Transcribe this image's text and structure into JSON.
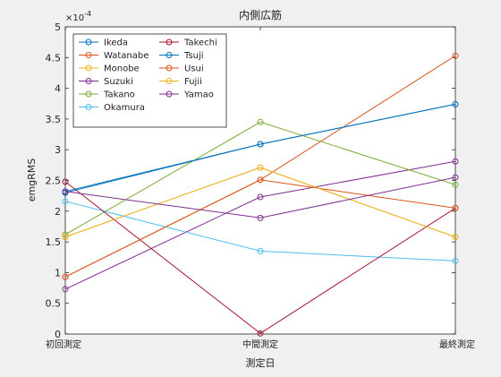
{
  "chart_data": {
    "type": "line",
    "title": "内側広筋",
    "xlabel": "測定日",
    "ylabel": "emgRMS",
    "y_exponent_label": "×10",
    "y_exponent_value": "-4",
    "categories": [
      "初回測定",
      "中間測定",
      "最終測定"
    ],
    "ylim": [
      0,
      5
    ],
    "yticks": [
      0,
      0.5,
      1,
      1.5,
      2,
      2.5,
      3,
      3.5,
      4,
      4.5,
      5
    ],
    "ytick_labels": [
      "0",
      "0.5",
      "1",
      "1.5",
      "2",
      "2.5",
      "3",
      "3.5",
      "4",
      "4.5",
      "5"
    ],
    "grid": false,
    "legend_position": "top-left",
    "legend_columns": 2,
    "series": [
      {
        "name": "Ikeda",
        "color": "#0072BD",
        "values": [
          2.32,
          3.09,
          3.74
        ]
      },
      {
        "name": "Watanabe",
        "color": "#D95319",
        "values": [
          0.93,
          2.51,
          4.53
        ]
      },
      {
        "name": "Monobe",
        "color": "#EDB120",
        "values": [
          1.58,
          2.71,
          1.58
        ]
      },
      {
        "name": "Suzuki",
        "color": "#7E2F8E",
        "values": [
          0.73,
          2.23,
          2.81
        ]
      },
      {
        "name": "Takano",
        "color": "#77AC30",
        "values": [
          1.62,
          3.45,
          2.43
        ]
      },
      {
        "name": "Okamura",
        "color": "#4DBEEE",
        "values": [
          2.16,
          1.35,
          1.19
        ]
      },
      {
        "name": "Takechi",
        "color": "#A2142F",
        "values": [
          2.48,
          0.01,
          2.05
        ]
      },
      {
        "name": "Tsuji",
        "color": "#0072BD",
        "values": [
          2.3,
          3.09,
          3.74
        ]
      },
      {
        "name": "Usui",
        "color": "#D95319",
        "values": [
          0.93,
          2.51,
          2.05
        ]
      },
      {
        "name": "Fujii",
        "color": "#EDB120",
        "values": [
          1.58,
          2.71,
          1.58
        ]
      },
      {
        "name": "Yamao",
        "color": "#7E2F8E",
        "values": [
          2.32,
          1.89,
          2.55
        ]
      }
    ]
  }
}
